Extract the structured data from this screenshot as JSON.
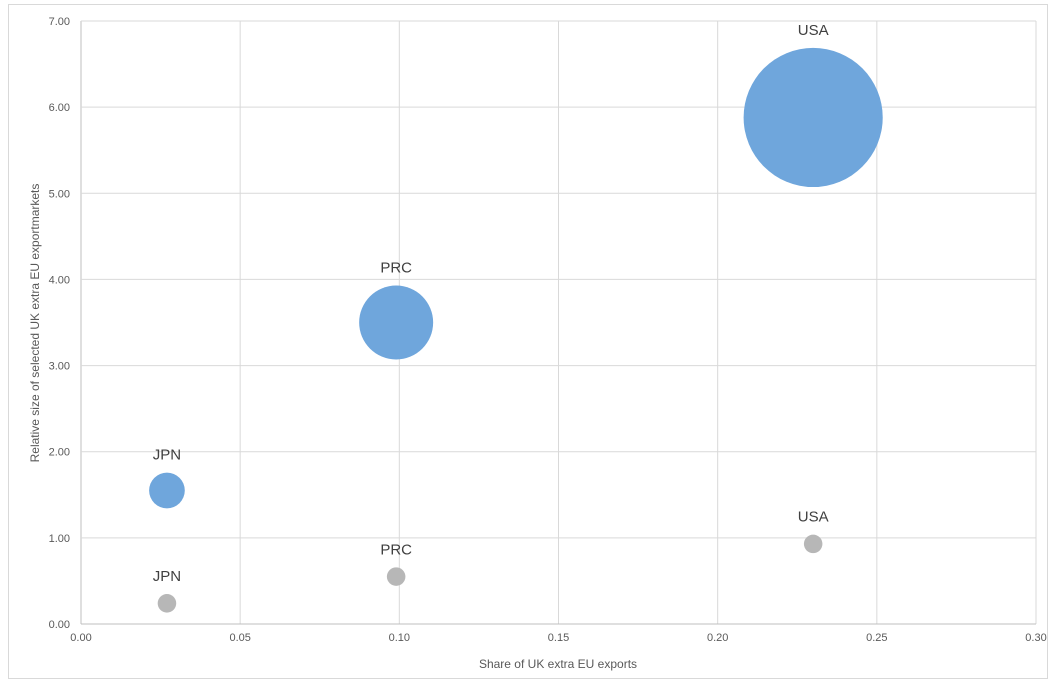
{
  "chart_data": {
    "type": "scatter",
    "subtype": "bubble",
    "title": "",
    "xlabel": "Share of UK extra EU exports",
    "ylabel": "Relative size of selected UK extra EU exportmarkets",
    "xlim": [
      0,
      0.3
    ],
    "ylim": [
      0,
      7
    ],
    "x_ticks": [
      "0.00",
      "0.05",
      "0.10",
      "0.15",
      "0.20",
      "0.25",
      "0.30"
    ],
    "y_ticks": [
      "0.00",
      "1.00",
      "2.00",
      "3.00",
      "4.00",
      "5.00",
      "6.00",
      "7.00"
    ],
    "grid": true,
    "legend": "none",
    "series": [
      {
        "color": "#6fa6dc",
        "points": [
          {
            "label": "JPN",
            "x": 0.027,
            "y": 1.55,
            "size": 1.0
          },
          {
            "label": "PRC",
            "x": 0.099,
            "y": 3.5,
            "size": 4.3
          },
          {
            "label": "USA",
            "x": 0.23,
            "y": 5.88,
            "size": 15.2
          }
        ]
      },
      {
        "color": "#b7b7b7",
        "points": [
          {
            "label": "JPN",
            "x": 0.027,
            "y": 0.24,
            "size": 0.27
          },
          {
            "label": "PRC",
            "x": 0.099,
            "y": 0.55,
            "size": 0.27
          },
          {
            "label": "USA",
            "x": 0.23,
            "y": 0.93,
            "size": 0.27
          }
        ]
      }
    ]
  }
}
